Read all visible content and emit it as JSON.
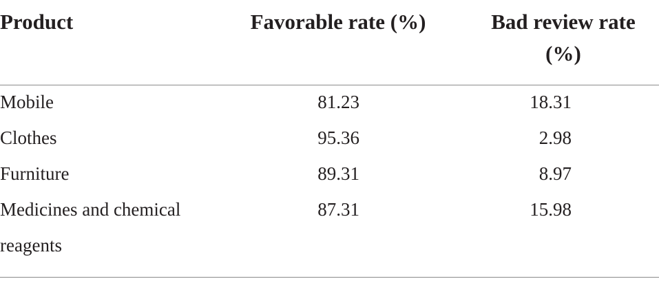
{
  "table": {
    "header": [
      "Product",
      "Favorable rate (%)",
      "Bad review rate (%)"
    ],
    "rows": [
      [
        "Mobile",
        81.23,
        18.31
      ],
      [
        "Clothes",
        95.36,
        2.98
      ],
      [
        "Furniture",
        89.31,
        8.97
      ],
      [
        "Medicines and chemical reagents",
        87.31,
        15.98
      ]
    ]
  }
}
